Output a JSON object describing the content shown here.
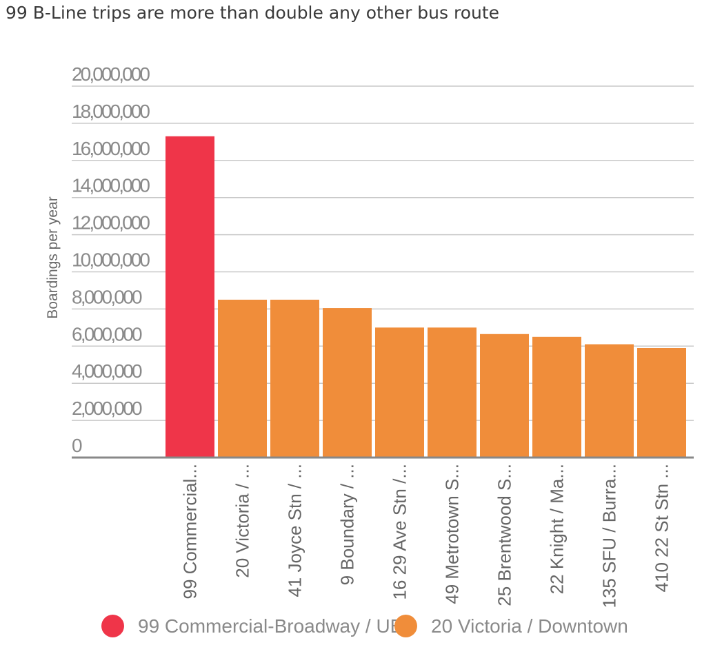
{
  "title": "99 B-Line trips are more than double any other bus route",
  "colors": {
    "highlight": "#ef3549",
    "default": "#f08d3a",
    "grid": "#c8c8c8",
    "axis": "#888888"
  },
  "chart_data": {
    "type": "bar",
    "title": "99 B-Line trips are more than double any other bus route",
    "xlabel": "",
    "ylabel": "Boardings per year",
    "ylim": [
      0,
      20000000
    ],
    "yticks": [
      0,
      2000000,
      4000000,
      6000000,
      8000000,
      10000000,
      12000000,
      14000000,
      16000000,
      18000000,
      20000000
    ],
    "ytick_labels": [
      "0",
      "2,000,000",
      "4,000,000",
      "6,000,000",
      "8,000,000",
      "10,000,000",
      "12,000,000",
      "14,000,000",
      "16,000,000",
      "18,000,000",
      "20,000,000"
    ],
    "categories": [
      "99 Commercial...",
      "20 Victoria / ...",
      "41 Joyce Stn / ...",
      "9 Boundary / ...",
      "16 29 Ave Stn /...",
      "49 Metrotown S...",
      "25 Brentwood S...",
      "22 Knight / Ma...",
      "135 SFU / Burra...",
      "410 22 St Stn ..."
    ],
    "values": [
      17300000,
      8500000,
      8500000,
      8050000,
      7000000,
      7000000,
      6650000,
      6500000,
      6100000,
      5900000
    ],
    "bar_colors": [
      "#ef3549",
      "#f08d3a",
      "#f08d3a",
      "#f08d3a",
      "#f08d3a",
      "#f08d3a",
      "#f08d3a",
      "#f08d3a",
      "#f08d3a",
      "#f08d3a"
    ],
    "grid": true,
    "legend_position": "bottom",
    "legend": [
      {
        "label": "99 Commercial-Broadway / UBC",
        "color": "#ef3549"
      },
      {
        "label": "20 Victoria / Downtown",
        "color": "#f08d3a"
      }
    ]
  }
}
